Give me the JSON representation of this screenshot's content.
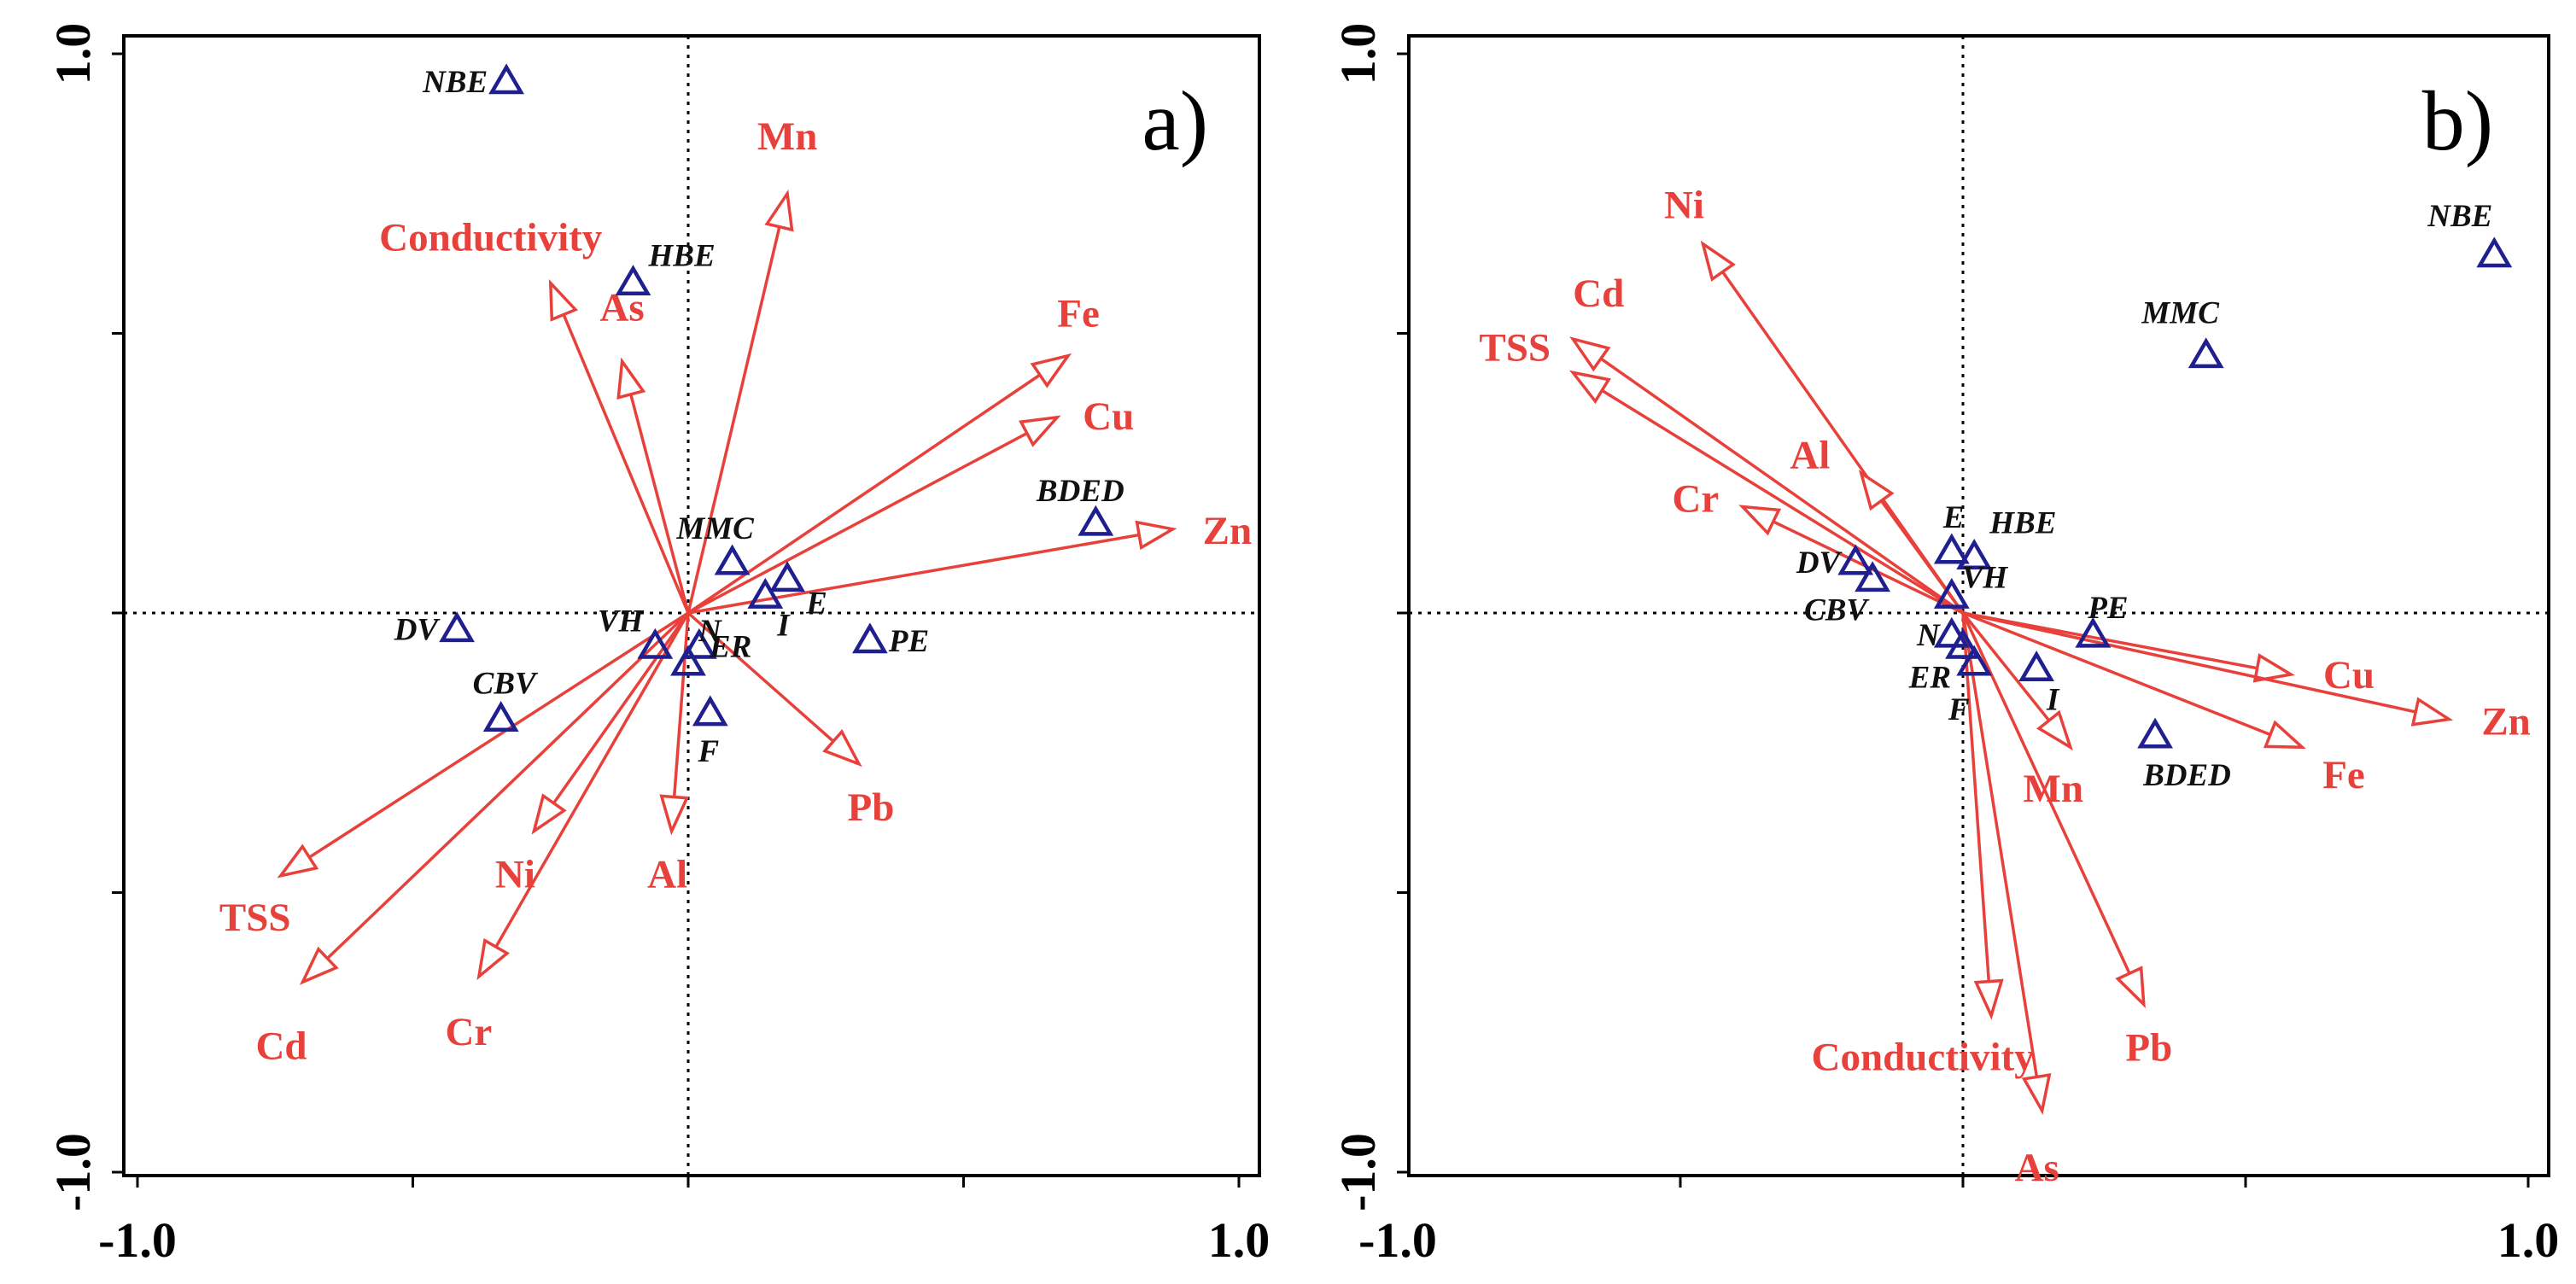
{
  "chart_data": [
    {
      "type": "biplot",
      "panel": "a)",
      "xlim": [
        -1.0,
        1.0
      ],
      "ylim": [
        -1.0,
        1.0
      ],
      "x_tick_labels": [
        "-1.0",
        "1.0"
      ],
      "y_tick_labels": [
        "1.0",
        "-1.0"
      ],
      "vectors": [
        {
          "name": "Mn",
          "x": 0.18,
          "y": 0.75
        },
        {
          "name": "Conductivity",
          "x": -0.25,
          "y": 0.59
        },
        {
          "name": "As",
          "x": -0.12,
          "y": 0.45
        },
        {
          "name": "Fe",
          "x": 0.69,
          "y": 0.46
        },
        {
          "name": "Cu",
          "x": 0.67,
          "y": 0.35
        },
        {
          "name": "Zn",
          "x": 0.88,
          "y": 0.15
        },
        {
          "name": "Pb",
          "x": 0.31,
          "y": -0.27
        },
        {
          "name": "Al",
          "x": -0.03,
          "y": -0.39
        },
        {
          "name": "Ni",
          "x": -0.28,
          "y": -0.39
        },
        {
          "name": "Cr",
          "x": -0.38,
          "y": -0.65
        },
        {
          "name": "TSS",
          "x": -0.74,
          "y": -0.47
        },
        {
          "name": "Cd",
          "x": -0.7,
          "y": -0.66
        }
      ],
      "sites": [
        {
          "name": "NBE",
          "x": -0.33,
          "y": 0.95
        },
        {
          "name": "HBE",
          "x": -0.1,
          "y": 0.59
        },
        {
          "name": "BDED",
          "x": 0.74,
          "y": 0.16
        },
        {
          "name": "MMC",
          "x": 0.08,
          "y": 0.09
        },
        {
          "name": "E",
          "x": 0.18,
          "y": 0.06
        },
        {
          "name": "I",
          "x": 0.14,
          "y": 0.03
        },
        {
          "name": "PE",
          "x": 0.33,
          "y": -0.05
        },
        {
          "name": "DV",
          "x": -0.42,
          "y": -0.03
        },
        {
          "name": "VH",
          "x": -0.06,
          "y": -0.06
        },
        {
          "name": "ER",
          "x": 0.02,
          "y": -0.06
        },
        {
          "name": "N",
          "x": 0.0,
          "y": -0.09
        },
        {
          "name": "F",
          "x": 0.04,
          "y": -0.18
        },
        {
          "name": "CBV",
          "x": -0.34,
          "y": -0.19
        }
      ]
    },
    {
      "type": "biplot",
      "panel": "b)",
      "xlim": [
        -1.0,
        1.0
      ],
      "ylim": [
        -1.0,
        1.0
      ],
      "x_tick_labels": [
        "-1.0",
        "1.0"
      ],
      "y_tick_labels": [
        "1.0",
        "-1.0"
      ],
      "vectors": [
        {
          "name": "Ni",
          "x": -0.46,
          "y": 0.66
        },
        {
          "name": "Cd",
          "x": -0.69,
          "y": 0.49
        },
        {
          "name": "TSS",
          "x": -0.69,
          "y": 0.43
        },
        {
          "name": "Al",
          "x": -0.18,
          "y": 0.25
        },
        {
          "name": "Cr",
          "x": -0.39,
          "y": 0.19
        },
        {
          "name": "Cu",
          "x": 0.58,
          "y": -0.11
        },
        {
          "name": "Zn",
          "x": 0.86,
          "y": -0.19
        },
        {
          "name": "Fe",
          "x": 0.6,
          "y": -0.24
        },
        {
          "name": "Mn",
          "x": 0.19,
          "y": -0.24
        },
        {
          "name": "Pb",
          "x": 0.32,
          "y": -0.7
        },
        {
          "name": "Conductivity",
          "x": 0.05,
          "y": -0.72
        },
        {
          "name": "As",
          "x": 0.14,
          "y": -0.89
        }
      ],
      "sites": [
        {
          "name": "NBE",
          "x": 0.94,
          "y": 0.64
        },
        {
          "name": "MMC",
          "x": 0.43,
          "y": 0.46
        },
        {
          "name": "E",
          "x": -0.02,
          "y": 0.11
        },
        {
          "name": "HBE",
          "x": 0.02,
          "y": 0.1
        },
        {
          "name": "DV",
          "x": -0.19,
          "y": 0.09
        },
        {
          "name": "CBV",
          "x": -0.16,
          "y": 0.06
        },
        {
          "name": "VH",
          "x": -0.02,
          "y": 0.03
        },
        {
          "name": "PE",
          "x": 0.23,
          "y": -0.04
        },
        {
          "name": "N",
          "x": -0.02,
          "y": -0.04
        },
        {
          "name": "ER",
          "x": 0.0,
          "y": -0.06
        },
        {
          "name": "F",
          "x": 0.02,
          "y": -0.09
        },
        {
          "name": "I",
          "x": 0.13,
          "y": -0.1
        },
        {
          "name": "BDED",
          "x": 0.34,
          "y": -0.22
        }
      ]
    }
  ]
}
